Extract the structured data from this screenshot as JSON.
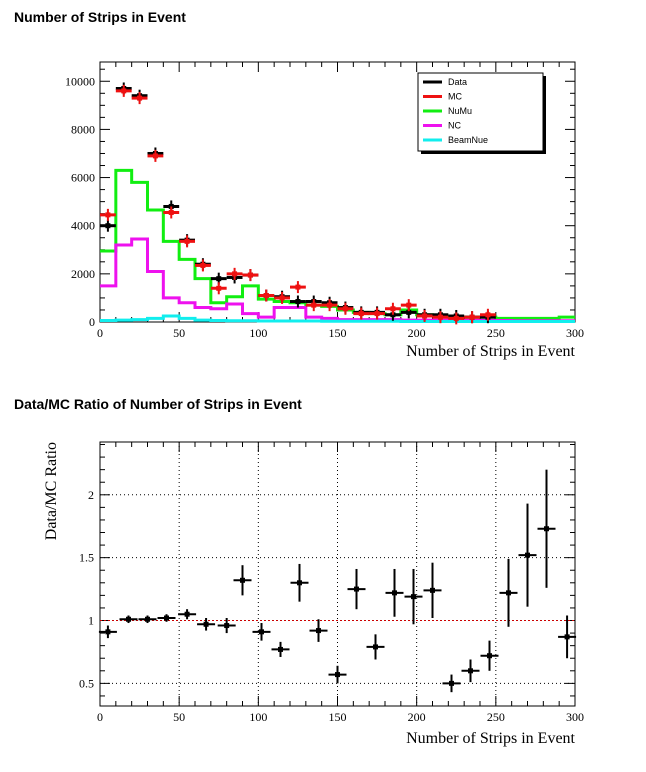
{
  "titles": {
    "top": "Number of Strips in Event",
    "bottom": "Data/MC Ratio of Number of Strips in Event"
  },
  "colors": {
    "data": "#000000",
    "mc": "#ee1111",
    "numu": "#11ee11",
    "nc": "#ee11ee",
    "beamnue": "#11eeee",
    "ratio_line": "#cc0000"
  },
  "chart_data": [
    {
      "type": "line",
      "title": "Number of Strips in Event",
      "xlabel": "Number of Strips in Event",
      "ylabel": "",
      "xlim": [
        0,
        300
      ],
      "ylim": [
        0,
        10800
      ],
      "xticks": [
        0,
        50,
        100,
        150,
        200,
        250,
        300
      ],
      "yticks": [
        0,
        2000,
        4000,
        6000,
        8000,
        10000
      ],
      "grid": false,
      "legend_position": "top-right",
      "legend": [
        "Data",
        "MC",
        "NuMu",
        "NC",
        "BeamNue"
      ],
      "bin_edges": [
        0,
        10,
        20,
        30,
        40,
        50,
        60,
        70,
        80,
        90,
        100,
        110,
        120,
        130,
        140,
        150,
        160,
        170,
        180,
        190,
        200,
        210,
        220,
        230,
        240,
        250,
        260,
        270,
        280,
        290,
        300
      ],
      "series": [
        {
          "name": "Data",
          "style": "points",
          "values": [
            4000,
            9700,
            9400,
            7000,
            4800,
            3400,
            2400,
            1800,
            1850,
            1950,
            1100,
            1050,
            850,
            850,
            800,
            600,
            400,
            400,
            300,
            400,
            300,
            300,
            250,
            200,
            200
          ]
        },
        {
          "name": "MC",
          "style": "points",
          "values": [
            4450,
            9600,
            9300,
            6900,
            4550,
            3350,
            2350,
            1400,
            2000,
            1950,
            1100,
            1000,
            1450,
            700,
            700,
            550,
            350,
            350,
            550,
            700,
            250,
            200,
            150,
            200,
            300
          ]
        },
        {
          "name": "NuMu",
          "style": "step",
          "values": [
            2950,
            6300,
            5800,
            4650,
            3350,
            2600,
            1800,
            800,
            1050,
            1500,
            950,
            850,
            800,
            700,
            650,
            500,
            400,
            350,
            300,
            500,
            300,
            250,
            200,
            200,
            200,
            150,
            150,
            150,
            150,
            200
          ]
        },
        {
          "name": "NC",
          "style": "step",
          "values": [
            1500,
            3200,
            3450,
            2100,
            1000,
            800,
            600,
            550,
            750,
            350,
            200,
            600,
            600,
            200,
            150,
            100,
            100,
            100,
            100,
            80,
            80,
            80,
            60,
            60,
            60,
            60,
            50,
            50,
            50,
            50
          ]
        },
        {
          "name": "BeamNue",
          "style": "step",
          "values": [
            60,
            80,
            100,
            150,
            250,
            150,
            80,
            60,
            50,
            50,
            40,
            40,
            40,
            40,
            30,
            30,
            30,
            30,
            30,
            20,
            20,
            20,
            20,
            20,
            20,
            20,
            20,
            20,
            20,
            20
          ]
        }
      ]
    },
    {
      "type": "scatter",
      "title": "Data/MC Ratio of Number of Strips in Event",
      "xlabel": "Number of Strips in Event",
      "ylabel": "Data/MC Ratio",
      "xlim": [
        0,
        300
      ],
      "ylim": [
        0.32,
        2.42
      ],
      "xticks": [
        0,
        50,
        100,
        150,
        200,
        250,
        300
      ],
      "yticks": [
        0.5,
        1,
        1.5,
        2
      ],
      "grid": true,
      "reference_line": 1,
      "points": [
        {
          "x": 5,
          "y": 0.91,
          "err": 0.05
        },
        {
          "x": 18,
          "y": 1.01,
          "err": 0.03
        },
        {
          "x": 30,
          "y": 1.01,
          "err": 0.03
        },
        {
          "x": 42,
          "y": 1.02,
          "err": 0.03
        },
        {
          "x": 55,
          "y": 1.05,
          "err": 0.04
        },
        {
          "x": 67,
          "y": 0.97,
          "err": 0.05
        },
        {
          "x": 80,
          "y": 0.96,
          "err": 0.06
        },
        {
          "x": 90,
          "y": 1.32,
          "err": 0.12
        },
        {
          "x": 102,
          "y": 0.91,
          "err": 0.07
        },
        {
          "x": 114,
          "y": 0.77,
          "err": 0.06
        },
        {
          "x": 126,
          "y": 1.3,
          "err": 0.15
        },
        {
          "x": 138,
          "y": 0.92,
          "err": 0.09
        },
        {
          "x": 150,
          "y": 0.57,
          "err": 0.07
        },
        {
          "x": 162,
          "y": 1.25,
          "err": 0.16
        },
        {
          "x": 174,
          "y": 0.79,
          "err": 0.1
        },
        {
          "x": 186,
          "y": 1.22,
          "err": 0.19
        },
        {
          "x": 198,
          "y": 1.19,
          "err": 0.22
        },
        {
          "x": 210,
          "y": 1.24,
          "err": 0.22
        },
        {
          "x": 222,
          "y": 0.5,
          "err": 0.07
        },
        {
          "x": 234,
          "y": 0.6,
          "err": 0.09
        },
        {
          "x": 246,
          "y": 0.72,
          "err": 0.12
        },
        {
          "x": 258,
          "y": 1.22,
          "err": 0.27
        },
        {
          "x": 270,
          "y": 1.52,
          "err": 0.41
        },
        {
          "x": 282,
          "y": 1.73,
          "err": 0.47
        },
        {
          "x": 295,
          "y": 0.87,
          "err": 0.17
        }
      ]
    }
  ]
}
